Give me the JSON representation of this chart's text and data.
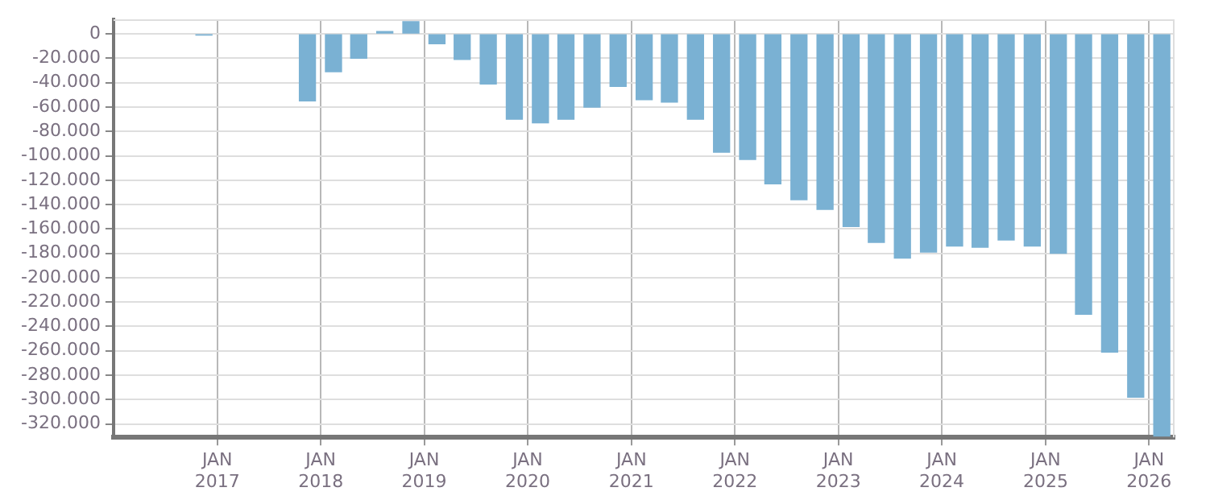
{
  "chart_data": {
    "type": "bar",
    "x": [
      "2016-11-15",
      "2017-11-15",
      "2018-02-15",
      "2018-05-15",
      "2018-08-15",
      "2018-11-15",
      "2019-02-15",
      "2019-05-15",
      "2019-08-15",
      "2019-11-15",
      "2020-02-15",
      "2020-05-15",
      "2020-08-15",
      "2020-11-15",
      "2021-02-15",
      "2021-05-15",
      "2021-08-15",
      "2021-11-15",
      "2022-02-15",
      "2022-05-15",
      "2022-08-15",
      "2022-11-15",
      "2023-02-15",
      "2023-05-15",
      "2023-08-15",
      "2023-11-15",
      "2024-02-15",
      "2024-05-15",
      "2024-08-15",
      "2024-11-15",
      "2025-02-15",
      "2025-05-15",
      "2025-08-15",
      "2025-11-15",
      "2026-02-15"
    ],
    "values": [
      -1000,
      -55000,
      -31000,
      -20000,
      2000,
      10000,
      -8000,
      -21000,
      -41000,
      -70000,
      -73000,
      -70000,
      -60000,
      -43000,
      -54000,
      -56000,
      -70000,
      -97000,
      -103000,
      -123000,
      -136000,
      -144000,
      -158000,
      -171000,
      -184000,
      -179000,
      -174000,
      -175000,
      -169000,
      -174000,
      -180000,
      -230000,
      -261000,
      -298000,
      -330000
    ],
    "color": "#7ab1d3",
    "xlim": [
      "2016-01-01",
      "2026-04-01"
    ],
    "xticks": [
      {
        "value": "2017-01-01",
        "label": "JAN 2017"
      },
      {
        "value": "2018-01-01",
        "label": "JAN 2018"
      },
      {
        "value": "2019-01-01",
        "label": "JAN 2019"
      },
      {
        "value": "2020-01-01",
        "label": "JAN 2020"
      },
      {
        "value": "2021-01-01",
        "label": "JAN 2021"
      },
      {
        "value": "2022-01-01",
        "label": "JAN 2022"
      },
      {
        "value": "2023-01-01",
        "label": "JAN 2023"
      },
      {
        "value": "2024-01-01",
        "label": "JAN 2024"
      },
      {
        "value": "2025-01-01",
        "label": "JAN 2025"
      },
      {
        "value": "2026-01-01",
        "label": "JAN 2026"
      }
    ],
    "ylim": [
      -331000,
      12000
    ],
    "yticks": [
      {
        "value": 0,
        "label": "0"
      },
      {
        "value": -20000,
        "label": "-20.000"
      },
      {
        "value": -40000,
        "label": "-40.000"
      },
      {
        "value": -60000,
        "label": "-60.000"
      },
      {
        "value": -80000,
        "label": "-80.000"
      },
      {
        "value": -100000,
        "label": "-100.000"
      },
      {
        "value": -120000,
        "label": "-120.000"
      },
      {
        "value": -140000,
        "label": "-140.000"
      },
      {
        "value": -160000,
        "label": "-160.000"
      },
      {
        "value": -180000,
        "label": "-180.000"
      },
      {
        "value": -200000,
        "label": "-200.000"
      },
      {
        "value": -220000,
        "label": "-220.000"
      },
      {
        "value": -240000,
        "label": "-240.000"
      },
      {
        "value": -260000,
        "label": "-260.000"
      },
      {
        "value": -280000,
        "label": "-280.000"
      },
      {
        "value": -300000,
        "label": "-300.000"
      },
      {
        "value": -320000,
        "label": "-320.000"
      }
    ],
    "grid": true
  }
}
